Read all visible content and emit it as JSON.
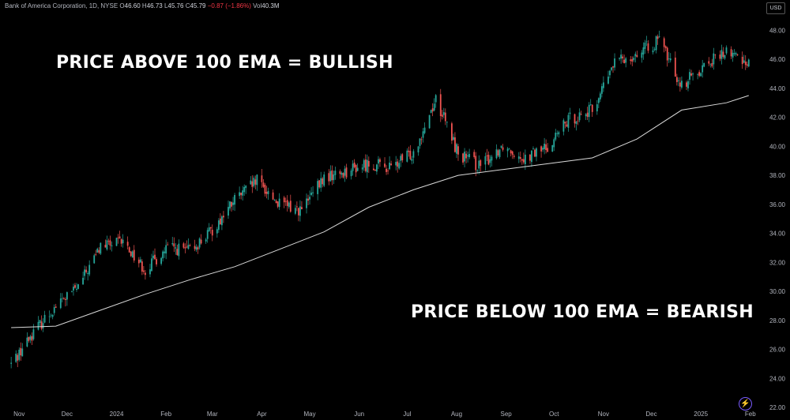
{
  "header": {
    "symbol_line": "Bank of America Corporation, 1D, NYSE",
    "open_label": "O",
    "open": "46.60",
    "high_label": "H",
    "high": "46.73",
    "low_label": "L",
    "low": "45.76",
    "close_label": "C",
    "close": "45.79",
    "change": "−0.87 (−1.86%)",
    "vol_label": "Vol",
    "vol": "40.3M"
  },
  "currency": "USD",
  "annotations": {
    "bullish": "PRICE ABOVE 100 EMA = BULLISH",
    "bearish": "PRICE BELOW 100 EMA = BEARISH"
  },
  "colors": {
    "up": "#26a69a",
    "down": "#ef5350",
    "ema": "#d9d9d9",
    "axis_text": "#b2b5be",
    "background": "#000000"
  },
  "chart_data": {
    "type": "candlestick",
    "y_axis_ticks": [
      "48.00",
      "46.00",
      "44.00",
      "42.00",
      "40.00",
      "38.00",
      "36.00",
      "34.00",
      "32.00",
      "30.00",
      "28.00",
      "26.00",
      "24.00",
      "22.00"
    ],
    "x_axis_ticks": [
      "Nov",
      "Dec",
      "2024",
      "Feb",
      "Mar",
      "Apr",
      "May",
      "Jun",
      "Jul",
      "Aug",
      "Sep",
      "Oct",
      "Nov",
      "Dec",
      "2025",
      "Feb"
    ],
    "ylim": [
      22,
      49
    ],
    "legend": "none",
    "series": [
      {
        "x": [
          "2023-10-27",
          "2023-11-10",
          "2023-11-24",
          "2023-12-08",
          "2023-12-22",
          "2024-01-05",
          "2024-01-19",
          "2024-02-02",
          "2024-02-16",
          "2024-03-01",
          "2024-03-15",
          "2024-03-29",
          "2024-04-12",
          "2024-04-26",
          "2024-05-10",
          "2024-05-24",
          "2024-06-07",
          "2024-06-21",
          "2024-07-05",
          "2024-07-19",
          "2024-08-02",
          "2024-08-16",
          "2024-08-30",
          "2024-09-13",
          "2024-09-27",
          "2024-10-11",
          "2024-10-25",
          "2024-11-08",
          "2024-11-22",
          "2024-12-06",
          "2024-12-20",
          "2025-01-03",
          "2025-01-17",
          "2025-01-31"
        ],
        "y": [
          25.0,
          27.2,
          29.0,
          30.3,
          33.1,
          33.4,
          31.5,
          33.0,
          32.8,
          34.2,
          36.3,
          37.6,
          36.0,
          35.6,
          37.8,
          38.3,
          38.8,
          38.5,
          39.6,
          43.3,
          39.5,
          38.6,
          40.1,
          39.2,
          40.0,
          41.9,
          42.5,
          45.8,
          46.4,
          47.3,
          44.2,
          45.6,
          46.5,
          45.8
        ]
      },
      {
        "name": "100 EMA",
        "x": [
          "2023-10-27",
          "2023-11-24",
          "2023-12-22",
          "2024-01-19",
          "2024-02-16",
          "2024-03-15",
          "2024-04-12",
          "2024-05-10",
          "2024-06-07",
          "2024-07-05",
          "2024-08-02",
          "2024-08-30",
          "2024-09-27",
          "2024-10-25",
          "2024-11-22",
          "2024-12-20",
          "2025-01-17",
          "2025-01-31"
        ],
        "y": [
          27.5,
          27.6,
          28.7,
          29.8,
          30.8,
          31.7,
          32.9,
          34.1,
          35.8,
          37.0,
          38.0,
          38.4,
          38.8,
          39.2,
          40.5,
          42.5,
          43.0,
          43.5
        ]
      }
    ]
  }
}
